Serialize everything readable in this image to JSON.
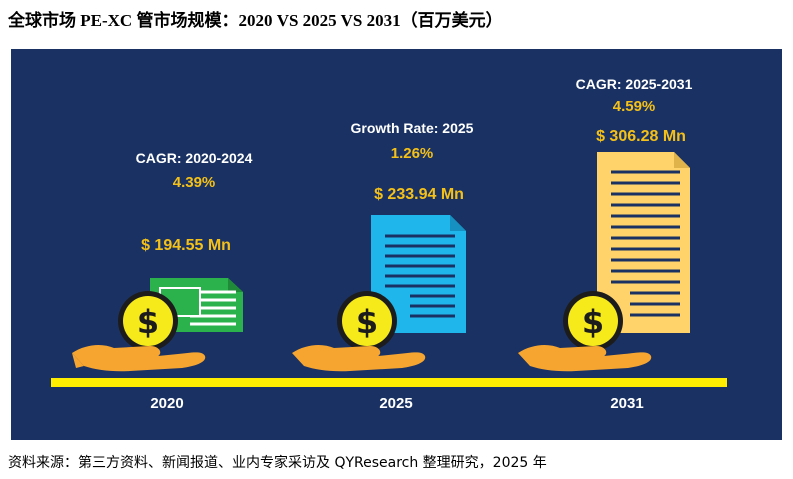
{
  "title": "全球市场 PE-XC 管市场规模：2020 VS 2025 VS 2031（百万美元）",
  "footer": "资料来源：第三方资料、新闻报道、业内专家采访及 QYResearch 整理研究，2025 年",
  "colors": {
    "background_panel": "#1a3263",
    "accent_gold": "#f5c118",
    "baseline": "#ffee00",
    "doc_2020": "#2bb24c",
    "doc_2025": "#1fb6ec",
    "doc_2031": "#ffd36a",
    "hand": "#f7a531"
  },
  "icons": [
    "money-hand-icon",
    "dollar-coin-icon",
    "document-icon"
  ],
  "chart_data": {
    "type": "bar",
    "categories": [
      "2020",
      "2025",
      "2031"
    ],
    "values": [
      194.55,
      233.94,
      306.28
    ],
    "value_labels": [
      "$ 194.55 Mn",
      "$ 233.94 Mn",
      "$ 306.28 Mn"
    ],
    "unit": "百万美元",
    "annotations": [
      {
        "label": "CAGR: 2020-2024",
        "value": "4.39%"
      },
      {
        "label": "Growth Rate: 2025",
        "value": "1.26%"
      },
      {
        "label": "CAGR: 2025-2031",
        "value": "4.59%"
      }
    ]
  }
}
